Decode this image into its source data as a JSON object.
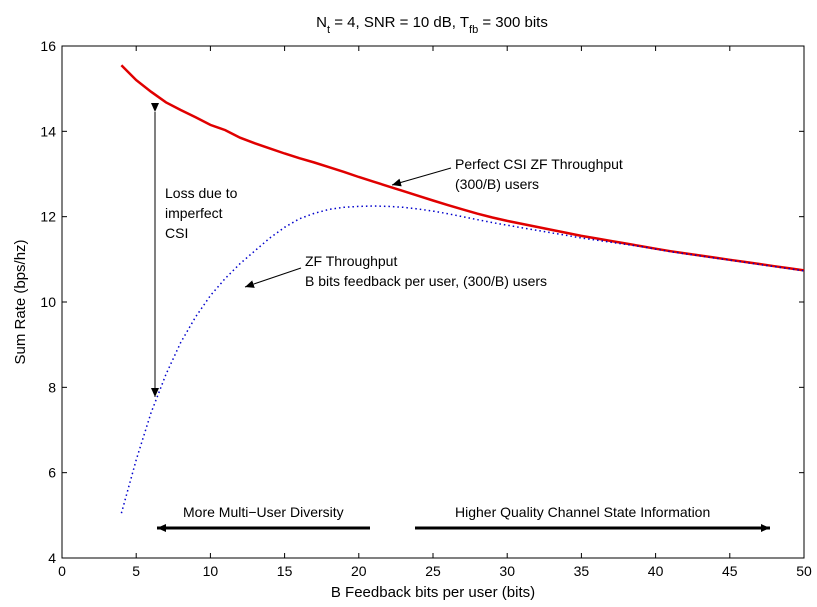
{
  "chart_data": {
    "type": "line",
    "title": {
      "parts": [
        {
          "t": "N",
          "sub": false
        },
        {
          "t": "t",
          "sub": true
        },
        {
          "t": " = 4, SNR = 10 dB, T",
          "sub": false
        },
        {
          "t": "fb",
          "sub": true
        },
        {
          "t": " = 300 bits",
          "sub": false
        }
      ]
    },
    "xlabel": "B Feedback bits per user (bits)",
    "ylabel": "Sum Rate (bps/hz)",
    "xlim": [
      0,
      50
    ],
    "ylim": [
      4,
      16
    ],
    "xticks": [
      0,
      5,
      10,
      15,
      20,
      25,
      30,
      35,
      40,
      45,
      50
    ],
    "yticks": [
      4,
      6,
      8,
      10,
      12,
      14,
      16
    ],
    "grid": false,
    "series": [
      {
        "name": "Perfect CSI ZF Throughput",
        "color": "#e00000",
        "style": "solid",
        "x": [
          4,
          5,
          6,
          7,
          8,
          9,
          10,
          11,
          12,
          13,
          14,
          15,
          16,
          17,
          18,
          19,
          20,
          21,
          22,
          23,
          24,
          25,
          26,
          27,
          28,
          29,
          30,
          31,
          32,
          33,
          34,
          35,
          36,
          37,
          38,
          39,
          40,
          41,
          42,
          43,
          44,
          45,
          46,
          47,
          48,
          49,
          50
        ],
        "y": [
          15.55,
          15.2,
          14.93,
          14.68,
          14.5,
          14.33,
          14.15,
          14.03,
          13.85,
          13.72,
          13.6,
          13.48,
          13.37,
          13.27,
          13.16,
          13.05,
          12.93,
          12.82,
          12.71,
          12.6,
          12.49,
          12.38,
          12.27,
          12.17,
          12.07,
          11.98,
          11.9,
          11.83,
          11.76,
          11.69,
          11.62,
          11.55,
          11.49,
          11.43,
          11.37,
          11.31,
          11.25,
          11.19,
          11.14,
          11.09,
          11.04,
          10.99,
          10.94,
          10.89,
          10.84,
          10.79,
          10.74
        ]
      },
      {
        "name": "ZF Throughput",
        "color": "#0000cc",
        "style": "dotted",
        "x": [
          4,
          5,
          6,
          7,
          8,
          9,
          10,
          11,
          12,
          13,
          14,
          15,
          16,
          17,
          18,
          19,
          20,
          21,
          22,
          23,
          24,
          25,
          26,
          27,
          28,
          29,
          30,
          31,
          32,
          33,
          34,
          35,
          36,
          37,
          38,
          39,
          40,
          41,
          42,
          43,
          44,
          45,
          46,
          47,
          48,
          49,
          50
        ],
        "y": [
          5.05,
          6.3,
          7.4,
          8.3,
          9.05,
          9.65,
          10.15,
          10.55,
          10.9,
          11.2,
          11.5,
          11.75,
          11.95,
          12.08,
          12.17,
          12.22,
          12.24,
          12.25,
          12.24,
          12.22,
          12.18,
          12.13,
          12.07,
          12.0,
          11.93,
          11.86,
          11.8,
          11.74,
          11.68,
          11.62,
          11.56,
          11.5,
          11.45,
          11.4,
          11.35,
          11.3,
          11.24,
          11.18,
          11.13,
          11.08,
          11.03,
          10.98,
          10.93,
          10.88,
          10.83,
          10.78,
          10.73
        ]
      }
    ],
    "annotations": {
      "perfect_line1": "Perfect CSI ZF Throughput",
      "perfect_line2": "(300/B) users",
      "zf_line1": "ZF Throughput",
      "zf_line2": "B bits feedback per user, (300/B) users",
      "loss_line1": "Loss due to",
      "loss_line2": "imperfect",
      "loss_line3": "CSI",
      "left_arrow_label": "More Multi−User Diversity",
      "right_arrow_label": "Higher Quality Channel State Information"
    }
  }
}
